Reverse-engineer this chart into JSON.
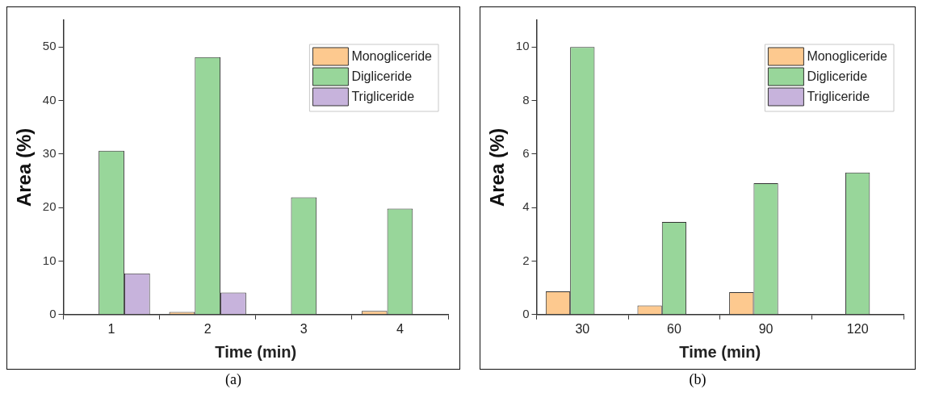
{
  "chart_data": [
    {
      "type": "bar",
      "xlabel": "Time (min)",
      "ylabel": "Area (%)",
      "categories": [
        "1",
        "2",
        "3",
        "4"
      ],
      "series": [
        {
          "name": "Monogliceride",
          "color": "#fdc98f",
          "values": [
            0,
            0.5,
            0,
            0.7
          ]
        },
        {
          "name": "Digliceride",
          "color": "#98d69a",
          "values": [
            30.6,
            48.1,
            21.9,
            19.8
          ]
        },
        {
          "name": "Trigliceride",
          "color": "#c7b3dc",
          "values": [
            7.7,
            4.1,
            0,
            0
          ]
        }
      ],
      "ylim": [
        0,
        55
      ],
      "yticks": [
        0,
        10,
        20,
        30,
        40,
        50
      ],
      "grid": false,
      "legend": "top right",
      "annotations": [
        "(a)"
      ]
    },
    {
      "type": "bar",
      "xlabel": "Time (min)",
      "ylabel": "Area (%)",
      "categories": [
        "30",
        "60",
        "90",
        "120"
      ],
      "series": [
        {
          "name": "Monogliceride",
          "color": "#fdc98f",
          "values": [
            0.87,
            0.34,
            0.84,
            0
          ]
        },
        {
          "name": "Digliceride",
          "color": "#98d69a",
          "values": [
            10.0,
            3.46,
            4.91,
            5.31
          ]
        },
        {
          "name": "Trigliceride",
          "color": "#c7b3dc",
          "values": [
            0,
            0,
            0,
            0
          ]
        }
      ],
      "ylim": [
        0,
        11
      ],
      "yticks": [
        0,
        2,
        4,
        6,
        8,
        10
      ],
      "grid": false,
      "legend": "top right",
      "annotations": [
        "(b)"
      ]
    }
  ]
}
